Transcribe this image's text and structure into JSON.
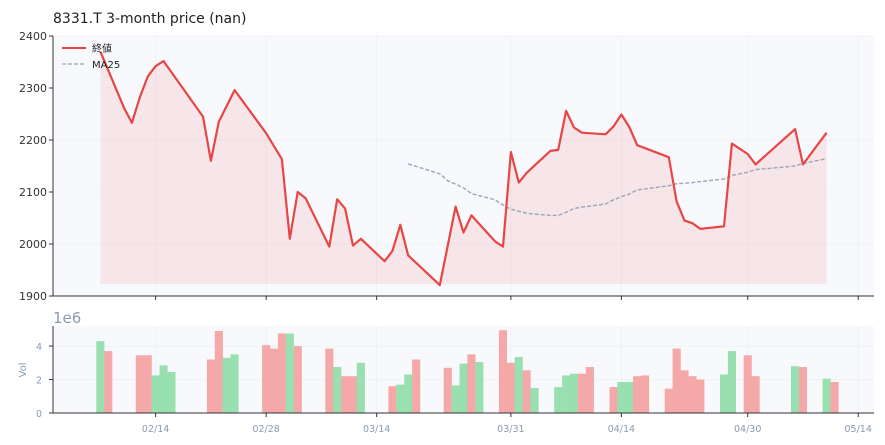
{
  "chart_data": {
    "type": "line",
    "title": "8331.T  3-month price (nan)",
    "price_panel": {
      "ylim": [
        1900,
        2400
      ],
      "yticks": [
        1900,
        2000,
        2100,
        2200,
        2300,
        2400
      ],
      "grid": true,
      "legend_position": "top-left",
      "series": [
        {
          "name": "終値",
          "color": "#e84545",
          "points": [
            [
              "2025-02-07",
              2370
            ],
            [
              "2025-02-10",
              2262
            ],
            [
              "2025-02-11",
              2233
            ],
            [
              "2025-02-12",
              2282
            ],
            [
              "2025-02-13",
              2322
            ],
            [
              "2025-02-14",
              2342
            ],
            [
              "2025-02-15",
              2352
            ],
            [
              "2025-02-20",
              2245
            ],
            [
              "2025-02-21",
              2160
            ],
            [
              "2025-02-22",
              2235
            ],
            [
              "2025-02-24",
              2296
            ],
            [
              "2025-02-28",
              2213
            ],
            [
              "2025-03-02",
              2163
            ],
            [
              "2025-03-03",
              2010
            ],
            [
              "2025-03-04",
              2100
            ],
            [
              "2025-03-05",
              2088
            ],
            [
              "2025-03-08",
              1995
            ],
            [
              "2025-03-09",
              2086
            ],
            [
              "2025-03-10",
              2068
            ],
            [
              "2025-03-11",
              1997
            ],
            [
              "2025-03-12",
              2010
            ],
            [
              "2025-03-15",
              1967
            ],
            [
              "2025-03-16",
              1987
            ],
            [
              "2025-03-17",
              2037
            ],
            [
              "2025-03-18",
              1978
            ],
            [
              "2025-03-22",
              1921
            ],
            [
              "2025-03-24",
              2072
            ],
            [
              "2025-03-25",
              2022
            ],
            [
              "2025-03-26",
              2055
            ],
            [
              "2025-03-29",
              2005
            ],
            [
              "2025-03-30",
              1995
            ],
            [
              "2025-03-31",
              2177
            ],
            [
              "2025-04-01",
              2118
            ],
            [
              "2025-04-02",
              2137
            ],
            [
              "2025-04-05",
              2179
            ],
            [
              "2025-04-06",
              2181
            ],
            [
              "2025-04-07",
              2256
            ],
            [
              "2025-04-08",
              2224
            ],
            [
              "2025-04-09",
              2214
            ],
            [
              "2025-04-12",
              2211
            ],
            [
              "2025-04-13",
              2226
            ],
            [
              "2025-04-14",
              2249
            ],
            [
              "2025-04-15",
              2225
            ],
            [
              "2025-04-16",
              2190
            ],
            [
              "2025-04-20",
              2167
            ],
            [
              "2025-04-21",
              2082
            ],
            [
              "2025-04-22",
              2045
            ],
            [
              "2025-04-23",
              2040
            ],
            [
              "2025-04-24",
              2029
            ],
            [
              "2025-04-27",
              2034
            ],
            [
              "2025-04-28",
              2193
            ],
            [
              "2025-04-30",
              2173
            ],
            [
              "2025-05-01",
              2153
            ],
            [
              "2025-05-06",
              2221
            ],
            [
              "2025-05-07",
              2153
            ],
            [
              "2025-05-10",
              2214
            ]
          ]
        },
        {
          "name": "MA25",
          "color": "#9aa5b8",
          "dashed": true,
          "points": [
            [
              "2025-03-18",
              2154
            ],
            [
              "2025-03-22",
              2135
            ],
            [
              "2025-03-23",
              2122
            ],
            [
              "2025-03-25",
              2108
            ],
            [
              "2025-03-26",
              2097
            ],
            [
              "2025-03-29",
              2085
            ],
            [
              "2025-03-30",
              2075
            ],
            [
              "2025-03-31",
              2067
            ],
            [
              "2025-04-01",
              2063
            ],
            [
              "2025-04-02",
              2059
            ],
            [
              "2025-04-05",
              2055
            ],
            [
              "2025-04-06",
              2055
            ],
            [
              "2025-04-07",
              2061
            ],
            [
              "2025-04-08",
              2068
            ],
            [
              "2025-04-09",
              2071
            ],
            [
              "2025-04-12",
              2077
            ],
            [
              "2025-04-13",
              2085
            ],
            [
              "2025-04-14",
              2091
            ],
            [
              "2025-04-15",
              2096
            ],
            [
              "2025-04-16",
              2104
            ],
            [
              "2025-04-20",
              2112
            ],
            [
              "2025-04-21",
              2116
            ],
            [
              "2025-04-22",
              2117
            ],
            [
              "2025-04-23",
              2118
            ],
            [
              "2025-04-24",
              2120
            ],
            [
              "2025-04-27",
              2125
            ],
            [
              "2025-04-28",
              2132
            ],
            [
              "2025-04-30",
              2138
            ],
            [
              "2025-05-01",
              2143
            ],
            [
              "2025-05-06",
              2150
            ],
            [
              "2025-05-07",
              2155
            ],
            [
              "2025-05-10",
              2164
            ]
          ]
        }
      ]
    },
    "volume_panel": {
      "ylabel": "Vol",
      "multiplier_label": "1e6",
      "ylim": [
        0,
        5.2
      ],
      "yticks": [
        0,
        2,
        4
      ],
      "grid": true,
      "up_color": "#98e0b0",
      "down_color": "#f4a8a8",
      "bars": [
        [
          "2025-02-07",
          4.3,
          "up"
        ],
        [
          "2025-02-08",
          3.7,
          "down"
        ],
        [
          "2025-02-12",
          3.45,
          "down"
        ],
        [
          "2025-02-13",
          3.45,
          "down"
        ],
        [
          "2025-02-14",
          2.25,
          "up"
        ],
        [
          "2025-02-15",
          2.85,
          "up"
        ],
        [
          "2025-02-16",
          2.45,
          "up"
        ],
        [
          "2025-02-21",
          3.2,
          "down"
        ],
        [
          "2025-02-22",
          4.9,
          "down"
        ],
        [
          "2025-02-23",
          3.3,
          "up"
        ],
        [
          "2025-02-24",
          3.5,
          "up"
        ],
        [
          "2025-02-28",
          4.05,
          "down"
        ],
        [
          "2025-03-01",
          3.85,
          "down"
        ],
        [
          "2025-03-02",
          4.75,
          "down"
        ],
        [
          "2025-03-03",
          4.75,
          "up"
        ],
        [
          "2025-03-04",
          4.0,
          "down"
        ],
        [
          "2025-03-08",
          3.85,
          "down"
        ],
        [
          "2025-03-09",
          2.75,
          "up"
        ],
        [
          "2025-03-10",
          2.2,
          "down"
        ],
        [
          "2025-03-11",
          2.2,
          "down"
        ],
        [
          "2025-03-12",
          3.0,
          "up"
        ],
        [
          "2025-03-16",
          1.6,
          "down"
        ],
        [
          "2025-03-17",
          1.7,
          "up"
        ],
        [
          "2025-03-18",
          2.3,
          "up"
        ],
        [
          "2025-03-19",
          3.2,
          "down"
        ],
        [
          "2025-03-23",
          2.7,
          "down"
        ],
        [
          "2025-03-24",
          1.65,
          "up"
        ],
        [
          "2025-03-25",
          2.95,
          "up"
        ],
        [
          "2025-03-26",
          3.5,
          "down"
        ],
        [
          "2025-03-27",
          3.05,
          "up"
        ],
        [
          "2025-03-30",
          4.95,
          "down"
        ],
        [
          "2025-03-31",
          3.0,
          "down"
        ],
        [
          "2025-04-01",
          3.35,
          "up"
        ],
        [
          "2025-04-02",
          2.55,
          "down"
        ],
        [
          "2025-04-03",
          1.5,
          "up"
        ],
        [
          "2025-04-06",
          1.55,
          "up"
        ],
        [
          "2025-04-07",
          2.25,
          "up"
        ],
        [
          "2025-04-08",
          2.35,
          "up"
        ],
        [
          "2025-04-09",
          2.35,
          "down"
        ],
        [
          "2025-04-10",
          2.75,
          "down"
        ],
        [
          "2025-04-13",
          1.55,
          "down"
        ],
        [
          "2025-04-14",
          1.85,
          "up"
        ],
        [
          "2025-04-15",
          1.85,
          "up"
        ],
        [
          "2025-04-16",
          2.2,
          "down"
        ],
        [
          "2025-04-17",
          2.25,
          "down"
        ],
        [
          "2025-04-20",
          1.45,
          "down"
        ],
        [
          "2025-04-21",
          3.85,
          "down"
        ],
        [
          "2025-04-22",
          2.55,
          "down"
        ],
        [
          "2025-04-23",
          2.2,
          "down"
        ],
        [
          "2025-04-24",
          2.0,
          "down"
        ],
        [
          "2025-04-27",
          2.3,
          "up"
        ],
        [
          "2025-04-28",
          3.7,
          "up"
        ],
        [
          "2025-04-30",
          3.45,
          "down"
        ],
        [
          "2025-05-01",
          2.2,
          "down"
        ],
        [
          "2025-05-06",
          2.8,
          "up"
        ],
        [
          "2025-05-07",
          2.75,
          "down"
        ],
        [
          "2025-05-10",
          2.05,
          "up"
        ],
        [
          "2025-05-11",
          1.85,
          "down"
        ]
      ]
    },
    "x_axis": {
      "tick_labels": [
        "02/14",
        "02/28",
        "03/14",
        "03/31",
        "04/14",
        "04/30",
        "05/14"
      ],
      "tick_dates": [
        "2025-02-14",
        "2025-02-28",
        "2025-03-14",
        "2025-03-31",
        "2025-04-14",
        "2025-04-30",
        "2025-05-14"
      ],
      "range": [
        "2025-02-01",
        "2025-05-16"
      ]
    }
  }
}
